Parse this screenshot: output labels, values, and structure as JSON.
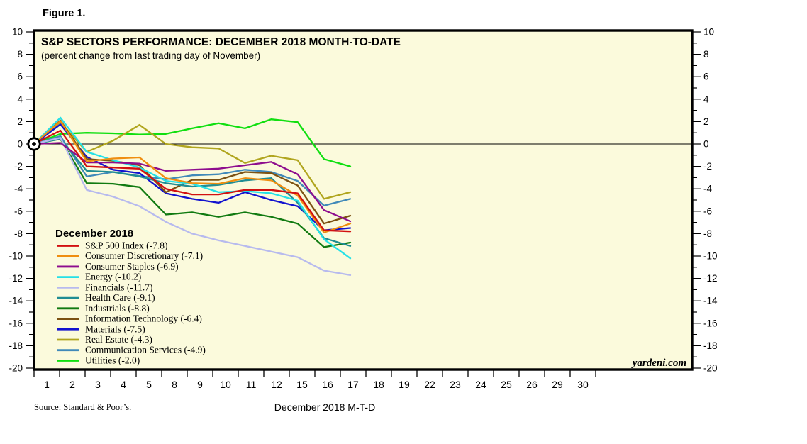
{
  "figure_label": "Figure 1.",
  "colors": {
    "plot_background": "#fbfadc",
    "border": "#000000",
    "text": "#000000"
  },
  "chart_data": {
    "type": "line",
    "title": "S&P SECTORS PERFORMANCE: DECEMBER 2018 MONTH-TO-DATE",
    "subtitle": "(percent change from last trading day of November)",
    "xlabel": "December 2018 M-T-D",
    "source": "Source: Standard & Poor’s.",
    "watermark": "yardeni.com",
    "legend_title": "December 2018",
    "ylim": [
      -20,
      10
    ],
    "y_major_tick_step": 2,
    "y_minor_tick_step": 1,
    "y_tick_labels": [
      "10",
      "8",
      "6",
      "4",
      "2",
      "0",
      "-2",
      "-4",
      "-6",
      "-8",
      "-10",
      "-12",
      "-14",
      "-16",
      "-18",
      "-20"
    ],
    "x_tick_labels": [
      "1",
      "2",
      "3",
      "4",
      "5",
      "8",
      "9",
      "10",
      "11",
      "12",
      "15",
      "16",
      "17",
      "18",
      "19",
      "22",
      "23",
      "24",
      "25",
      "26",
      "29",
      "30"
    ],
    "grid": "off",
    "legend_position": "inside-left-lower",
    "baseline_marker": "circled dot at origin (value 0 on last trading day of November)",
    "x_note": "12 trading-day observations starting at 0; data plotted through day label 17",
    "series": [
      {
        "name": "S&P 500 Index",
        "legend": "S&P 500 Index (-7.8)",
        "final": -7.8,
        "color": "#d21010",
        "values": [
          0,
          1.2,
          -2.0,
          -2.1,
          -2.2,
          -4.0,
          -4.5,
          -4.5,
          -4.1,
          -4.1,
          -4.4,
          -7.7,
          -7.8
        ]
      },
      {
        "name": "Consumer Discretionary",
        "legend": "Consumer Discretionary (-7.1)",
        "final": -7.1,
        "color": "#ef8e10",
        "values": [
          0,
          2.05,
          -1.55,
          -1.3,
          -1.2,
          -3.05,
          -3.5,
          -3.55,
          -3.05,
          -3.25,
          -4.6,
          -7.9,
          -7.1
        ]
      },
      {
        "name": "Consumer Staples",
        "legend": "Consumer Staples (-6.9)",
        "final": -6.9,
        "color": "#8e0d8e",
        "values": [
          0,
          0.1,
          -1.65,
          -1.65,
          -1.75,
          -2.4,
          -2.3,
          -2.2,
          -1.9,
          -1.6,
          -2.7,
          -5.9,
          -6.9
        ]
      },
      {
        "name": "Energy",
        "legend": "Energy (-10.2)",
        "final": -10.2,
        "color": "#25e0e6",
        "values": [
          0,
          2.35,
          -0.7,
          -1.45,
          -2.1,
          -3.3,
          -3.55,
          -4.3,
          -4.2,
          -4.4,
          -5.05,
          -8.5,
          -10.2
        ]
      },
      {
        "name": "Financials",
        "legend": "Financials (-11.7)",
        "final": -11.7,
        "color": "#b7baee",
        "values": [
          0,
          0.55,
          -4.1,
          -4.7,
          -5.55,
          -6.95,
          -8.0,
          -8.6,
          -9.1,
          -9.6,
          -10.1,
          -11.3,
          -11.7
        ]
      },
      {
        "name": "Health Care",
        "legend": "Health Care (-9.1)",
        "final": -9.1,
        "color": "#208d93",
        "values": [
          0,
          0.45,
          -2.4,
          -2.5,
          -2.9,
          -3.5,
          -3.8,
          -3.65,
          -3.25,
          -3.05,
          -5.25,
          -8.4,
          -9.1
        ]
      },
      {
        "name": "Industrials",
        "legend": "Industrials (-8.8)",
        "final": -8.8,
        "color": "#117a11",
        "values": [
          0,
          0.45,
          -3.5,
          -3.55,
          -3.85,
          -6.3,
          -6.1,
          -6.5,
          -6.1,
          -6.5,
          -7.1,
          -9.2,
          -8.8
        ]
      },
      {
        "name": "Information Technology",
        "legend": "Information Technology (-6.4)",
        "final": -6.4,
        "color": "#7c5213",
        "values": [
          0,
          2.1,
          -1.35,
          -1.5,
          -1.9,
          -4.3,
          -3.2,
          -3.2,
          -2.5,
          -2.6,
          -3.7,
          -7.1,
          -6.4
        ]
      },
      {
        "name": "Materials",
        "legend": "Materials (-7.5)",
        "final": -7.5,
        "color": "#1212cf",
        "values": [
          0,
          1.75,
          -1.15,
          -2.3,
          -2.6,
          -4.4,
          -4.9,
          -5.25,
          -4.3,
          -5.0,
          -5.55,
          -7.7,
          -7.5
        ]
      },
      {
        "name": "Real Estate",
        "legend": "Real Estate (-4.3)",
        "final": -4.3,
        "color": "#b0a51e",
        "values": [
          0,
          1.95,
          -0.7,
          0.3,
          1.7,
          0.0,
          -0.3,
          -0.4,
          -1.7,
          -1.05,
          -1.45,
          -4.9,
          -4.3
        ]
      },
      {
        "name": "Communication Services",
        "legend": "Communication Services (-4.9)",
        "final": -4.9,
        "color": "#4089b9",
        "values": [
          0,
          0.7,
          -2.9,
          -2.5,
          -2.85,
          -3.15,
          -2.8,
          -2.7,
          -2.3,
          -2.5,
          -3.3,
          -5.5,
          -4.9
        ]
      },
      {
        "name": "Utilities",
        "legend": "Utilities (-2.0)",
        "final": -2.0,
        "color": "#10df10",
        "values": [
          0,
          0.9,
          1.0,
          0.95,
          0.85,
          0.9,
          1.4,
          1.85,
          1.4,
          2.2,
          1.95,
          -1.35,
          -2.0
        ]
      }
    ]
  }
}
